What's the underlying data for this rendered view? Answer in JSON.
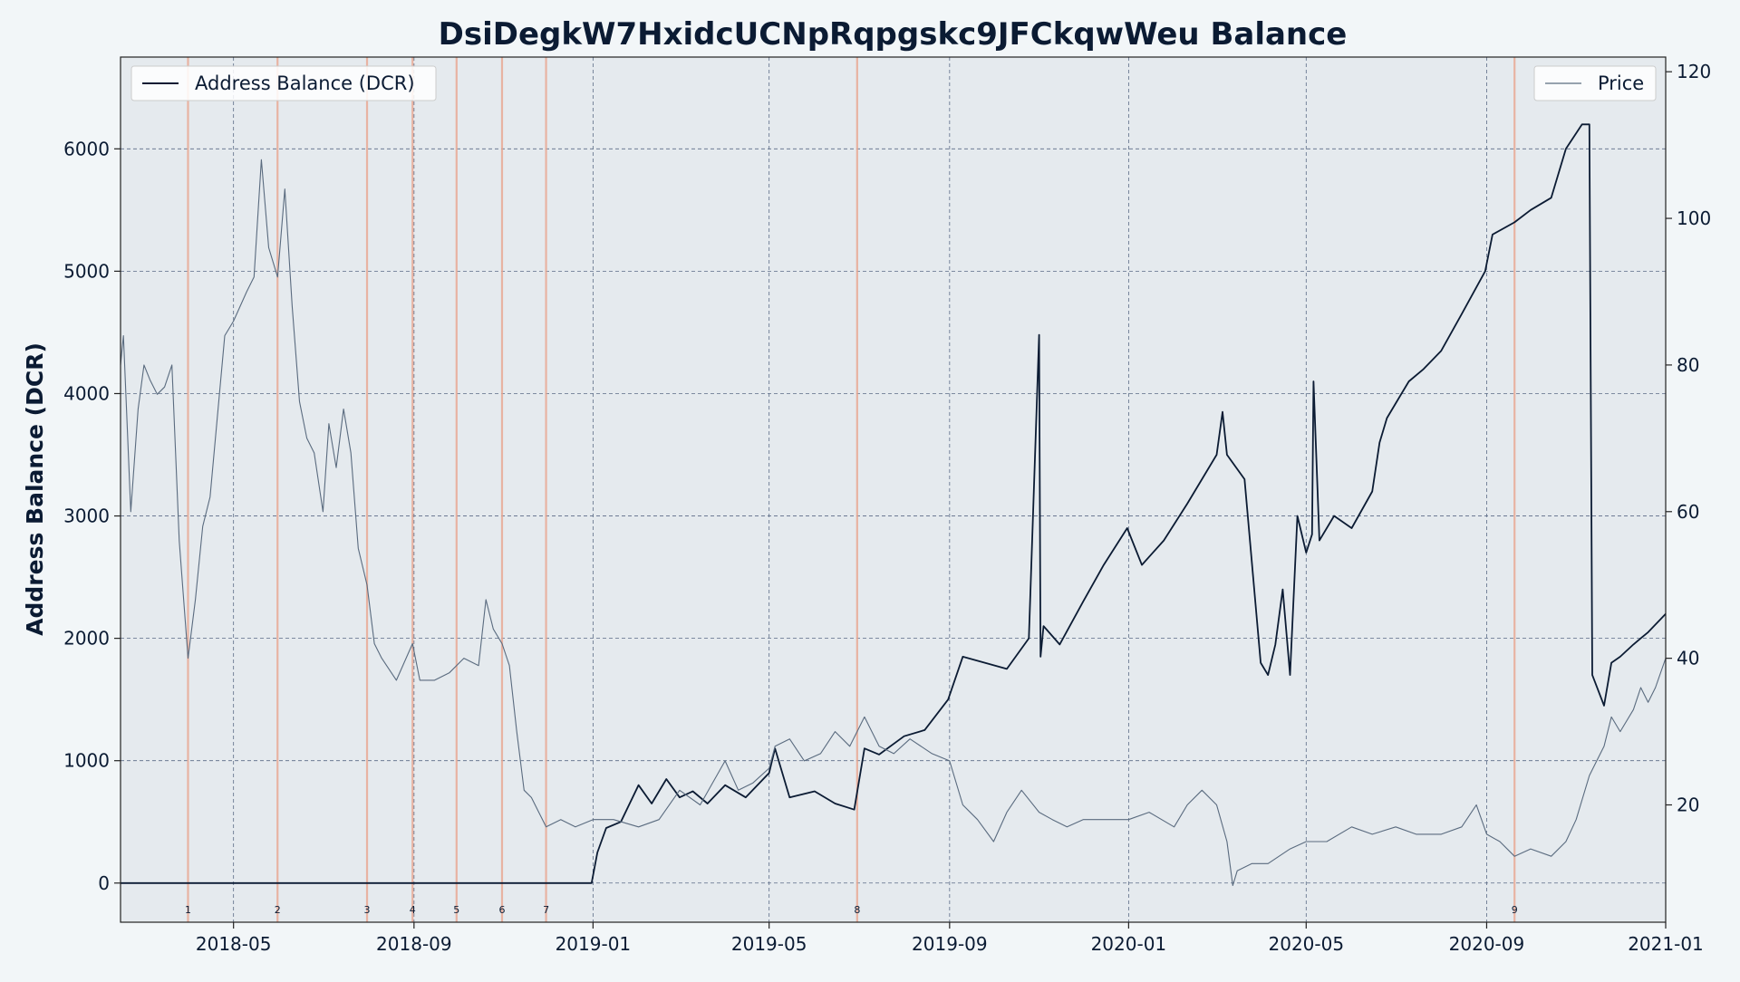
{
  "chart_data": {
    "type": "line",
    "title": "DsiDegkW7HxidcUCNpRqpgskc9JFCkqwWeu Balance",
    "ylabel": "Address Balance (DCR)",
    "y2label": "",
    "xlim": [
      "2018-02-13",
      "2021-01-01"
    ],
    "ylim": [
      -320,
      6750
    ],
    "y2lim": [
      4,
      122
    ],
    "x_ticks": [
      "2018-05",
      "2018-09",
      "2019-01",
      "2019-05",
      "2019-09",
      "2020-01",
      "2020-05",
      "2020-09",
      "2021-01"
    ],
    "y_ticks": [
      0,
      1000,
      2000,
      3000,
      4000,
      5000,
      6000
    ],
    "y2_ticks": [
      20,
      40,
      60,
      80,
      100,
      120
    ],
    "grid": true,
    "legend": [
      {
        "label": "Address Balance (DCR)",
        "placement": "top-left",
        "color": "#0b1b33"
      },
      {
        "label": "Price",
        "placement": "top-right",
        "color": "#5a6b7f"
      }
    ],
    "event_markers": [
      {
        "label": "1",
        "date": "2018-03-31"
      },
      {
        "label": "2",
        "date": "2018-05-31"
      },
      {
        "label": "3",
        "date": "2018-07-31"
      },
      {
        "label": "4",
        "date": "2018-08-31"
      },
      {
        "label": "5",
        "date": "2018-09-30"
      },
      {
        "label": "6",
        "date": "2018-10-31"
      },
      {
        "label": "7",
        "date": "2018-11-30"
      },
      {
        "label": "8",
        "date": "2019-06-30"
      },
      {
        "label": "9",
        "date": "2020-09-20"
      }
    ],
    "series": [
      {
        "name": "Address Balance (DCR)",
        "axis": "left",
        "color": "#0b1b33",
        "x": [
          "2018-02-13",
          "2018-12-31",
          "2019-01-04",
          "2019-01-10",
          "2019-01-20",
          "2019-02-01",
          "2019-02-10",
          "2019-02-20",
          "2019-03-01",
          "2019-03-10",
          "2019-03-20",
          "2019-04-01",
          "2019-04-15",
          "2019-05-01",
          "2019-05-05",
          "2019-05-15",
          "2019-06-01",
          "2019-06-15",
          "2019-06-28",
          "2019-07-05",
          "2019-07-15",
          "2019-08-01",
          "2019-08-15",
          "2019-08-31",
          "2019-09-10",
          "2019-09-25",
          "2019-10-10",
          "2019-10-25",
          "2019-11-01",
          "2019-11-02",
          "2019-11-04",
          "2019-11-15",
          "2019-12-01",
          "2019-12-15",
          "2019-12-31",
          "2020-01-10",
          "2020-01-25",
          "2020-02-10",
          "2020-02-20",
          "2020-03-01",
          "2020-03-05",
          "2020-03-08",
          "2020-03-20",
          "2020-03-31",
          "2020-04-05",
          "2020-04-10",
          "2020-04-15",
          "2020-04-20",
          "2020-04-25",
          "2020-05-01",
          "2020-05-05",
          "2020-05-06",
          "2020-05-10",
          "2020-05-20",
          "2020-06-01",
          "2020-06-15",
          "2020-06-20",
          "2020-06-25",
          "2020-07-05",
          "2020-07-10",
          "2020-07-20",
          "2020-08-01",
          "2020-08-15",
          "2020-08-31",
          "2020-09-05",
          "2020-09-20",
          "2020-10-01",
          "2020-10-15",
          "2020-10-25",
          "2020-11-05",
          "2020-11-10",
          "2020-11-12",
          "2020-11-20",
          "2020-11-25",
          "2020-12-01",
          "2020-12-10",
          "2020-12-15",
          "2020-12-20",
          "2021-01-01"
        ],
        "values": [
          0,
          0,
          250,
          450,
          500,
          800,
          650,
          850,
          700,
          750,
          650,
          800,
          700,
          900,
          1100,
          700,
          750,
          650,
          600,
          1100,
          1050,
          1200,
          1250,
          1500,
          1850,
          1800,
          1750,
          2000,
          4480,
          1850,
          2100,
          1950,
          2300,
          2600,
          2900,
          2600,
          2800,
          3100,
          3300,
          3500,
          3850,
          3500,
          3300,
          1800,
          1700,
          1950,
          2400,
          1700,
          3000,
          2700,
          2850,
          4100,
          2800,
          3000,
          2900,
          3200,
          3600,
          3800,
          4000,
          4100,
          4200,
          4350,
          4650,
          5000,
          5300,
          5400,
          5500,
          5600,
          6000,
          6200,
          6200,
          1700,
          1450,
          1800,
          1850,
          1950,
          2000,
          2050,
          2200
        ]
      },
      {
        "name": "Price",
        "axis": "right",
        "color": "#5a6b7f",
        "x": [
          "2018-02-13",
          "2018-02-15",
          "2018-02-20",
          "2018-02-25",
          "2018-03-01",
          "2018-03-05",
          "2018-03-10",
          "2018-03-15",
          "2018-03-20",
          "2018-03-25",
          "2018-03-31",
          "2018-04-05",
          "2018-04-10",
          "2018-04-15",
          "2018-04-25",
          "2018-05-01",
          "2018-05-10",
          "2018-05-15",
          "2018-05-20",
          "2018-05-25",
          "2018-05-31",
          "2018-06-05",
          "2018-06-10",
          "2018-06-15",
          "2018-06-20",
          "2018-06-25",
          "2018-07-01",
          "2018-07-05",
          "2018-07-10",
          "2018-07-15",
          "2018-07-20",
          "2018-07-25",
          "2018-07-31",
          "2018-08-05",
          "2018-08-10",
          "2018-08-20",
          "2018-08-31",
          "2018-09-05",
          "2018-09-15",
          "2018-09-25",
          "2018-10-05",
          "2018-10-15",
          "2018-10-20",
          "2018-10-25",
          "2018-10-31",
          "2018-11-05",
          "2018-11-10",
          "2018-11-15",
          "2018-11-20",
          "2018-11-30",
          "2018-12-10",
          "2018-12-20",
          "2019-01-01",
          "2019-01-15",
          "2019-02-01",
          "2019-02-15",
          "2019-03-01",
          "2019-03-15",
          "2019-04-01",
          "2019-04-10",
          "2019-04-20",
          "2019-05-01",
          "2019-05-05",
          "2019-05-15",
          "2019-05-25",
          "2019-06-05",
          "2019-06-15",
          "2019-06-25",
          "2019-07-05",
          "2019-07-15",
          "2019-07-25",
          "2019-08-05",
          "2019-08-20",
          "2019-09-01",
          "2019-09-10",
          "2019-09-20",
          "2019-10-01",
          "2019-10-10",
          "2019-10-20",
          "2019-11-01",
          "2019-11-10",
          "2019-11-20",
          "2019-12-01",
          "2019-12-20",
          "2020-01-01",
          "2020-01-15",
          "2020-02-01",
          "2020-02-10",
          "2020-02-20",
          "2020-03-01",
          "2020-03-08",
          "2020-03-12",
          "2020-03-15",
          "2020-03-25",
          "2020-04-05",
          "2020-04-20",
          "2020-05-01",
          "2020-05-15",
          "2020-06-01",
          "2020-06-15",
          "2020-07-01",
          "2020-07-15",
          "2020-08-01",
          "2020-08-15",
          "2020-08-25",
          "2020-09-01",
          "2020-09-10",
          "2020-09-20",
          "2020-10-01",
          "2020-10-15",
          "2020-10-25",
          "2020-11-01",
          "2020-11-10",
          "2020-11-15",
          "2020-11-20",
          "2020-11-25",
          "2020-12-01",
          "2020-12-10",
          "2020-12-15",
          "2020-12-20",
          "2020-12-25",
          "2021-01-01"
        ],
        "values": [
          80,
          84,
          60,
          74,
          80,
          78,
          76,
          77,
          80,
          56,
          40,
          48,
          58,
          62,
          84,
          86,
          90,
          92,
          108,
          96,
          92,
          104,
          88,
          75,
          70,
          68,
          60,
          72,
          66,
          74,
          68,
          55,
          50,
          42,
          40,
          37,
          42,
          37,
          37,
          38,
          40,
          39,
          48,
          44,
          42,
          39,
          30,
          22,
          21,
          17,
          18,
          17,
          18,
          18,
          17,
          18,
          22,
          20,
          26,
          22,
          23,
          25,
          28,
          29,
          26,
          27,
          30,
          28,
          32,
          28,
          27,
          29,
          27,
          26,
          20,
          18,
          15,
          19,
          22,
          19,
          18,
          17,
          18,
          18,
          18,
          19,
          17,
          20,
          22,
          20,
          15,
          9,
          11,
          12,
          12,
          14,
          15,
          15,
          17,
          16,
          17,
          16,
          16,
          17,
          20,
          16,
          15,
          13,
          14,
          13,
          15,
          18,
          24,
          26,
          28,
          32,
          30,
          33,
          36,
          34,
          36,
          40
        ]
      }
    ]
  }
}
